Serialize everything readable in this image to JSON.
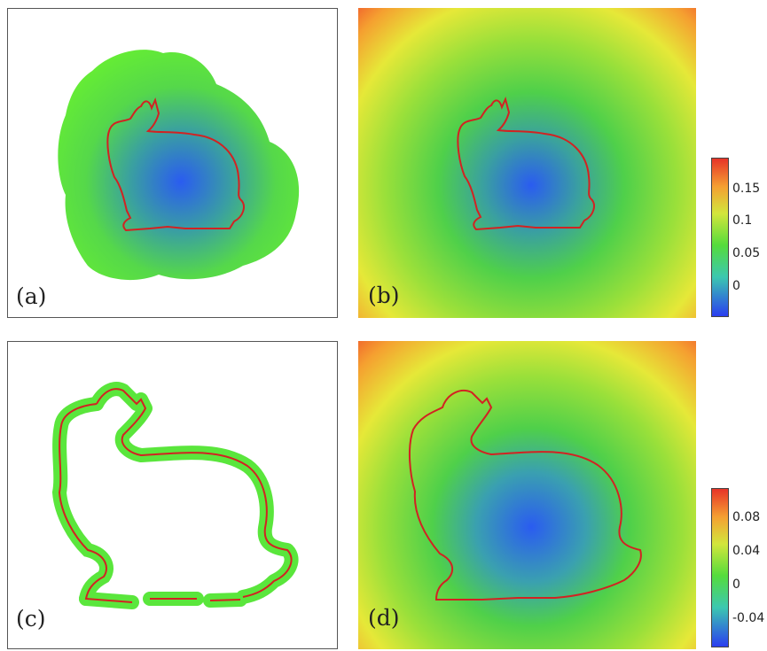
{
  "panels": [
    {
      "id": "a",
      "label": "(a)"
    },
    {
      "id": "b",
      "label": "(b)"
    },
    {
      "id": "c",
      "label": "(c)"
    },
    {
      "id": "d",
      "label": "(d)"
    }
  ],
  "colorbars": [
    {
      "ticks": [
        "0.15",
        "0.1",
        "0.05",
        "0"
      ],
      "range_min": -0.04,
      "range_max": 0.18
    },
    {
      "ticks": [
        "0.08",
        "0.04",
        "0",
        "-0.04"
      ],
      "range_min": -0.07,
      "range_max": 0.11
    }
  ],
  "colors": {
    "contour": "#d22222",
    "band": "#5ae63c",
    "frame": "#555555"
  }
}
